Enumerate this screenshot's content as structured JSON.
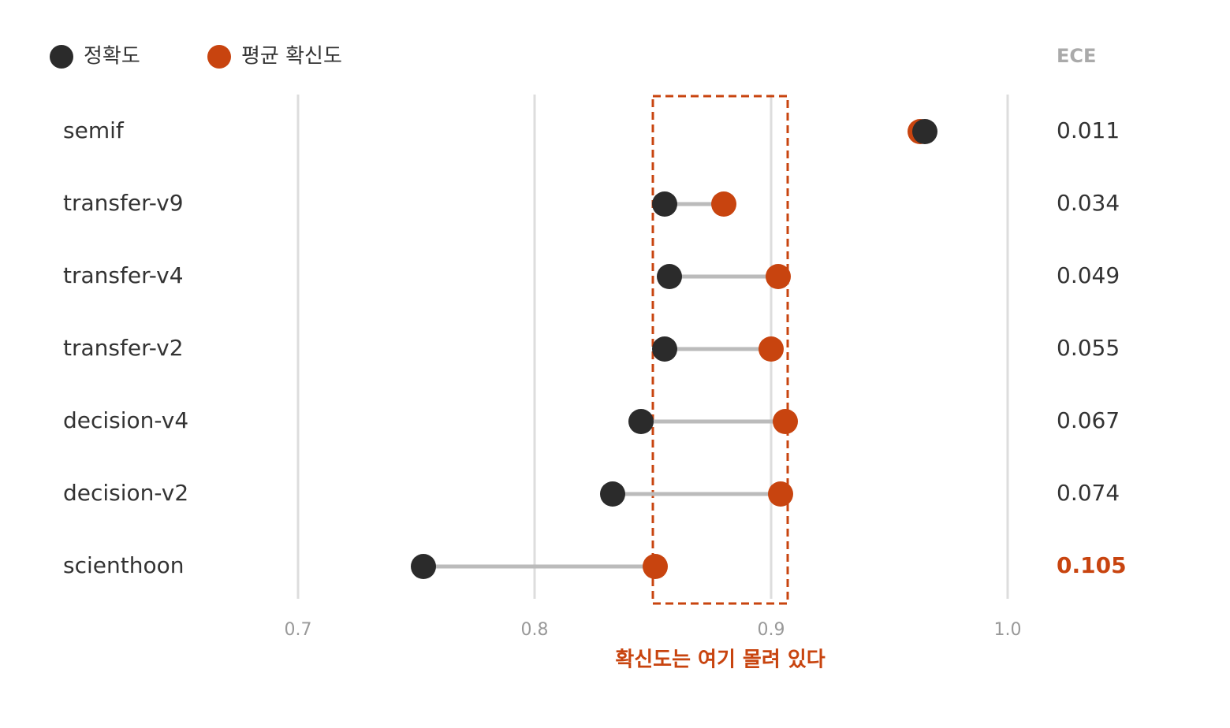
{
  "chart_data": {
    "type": "dumbbell",
    "categories": [
      "semif",
      "transfer-v9",
      "transfer-v4",
      "transfer-v2",
      "decision-v4",
      "decision-v2",
      "scienthoon"
    ],
    "series": [
      {
        "name": "정확도",
        "color": "#2b2b2b",
        "values": [
          0.965,
          0.855,
          0.857,
          0.855,
          0.845,
          0.833,
          0.753
        ]
      },
      {
        "name": "평균 확신도",
        "color": "#c8440f",
        "values": [
          0.963,
          0.88,
          0.903,
          0.9,
          0.906,
          0.904,
          0.851
        ]
      }
    ],
    "ece_title": "ECE",
    "ece": [
      0.011,
      0.034,
      0.049,
      0.055,
      0.067,
      0.074,
      0.105
    ],
    "xlim": [
      0.7,
      1.0
    ],
    "xticks": [
      0.7,
      0.8,
      0.9,
      {
        "value": 1.0,
        "label": "1.0"
      }
    ],
    "grid": true,
    "highlight_range": [
      0.85,
      0.907
    ],
    "annotation": "확신도는 여기 몰려 있다",
    "annotation_color": "#c8440f"
  }
}
